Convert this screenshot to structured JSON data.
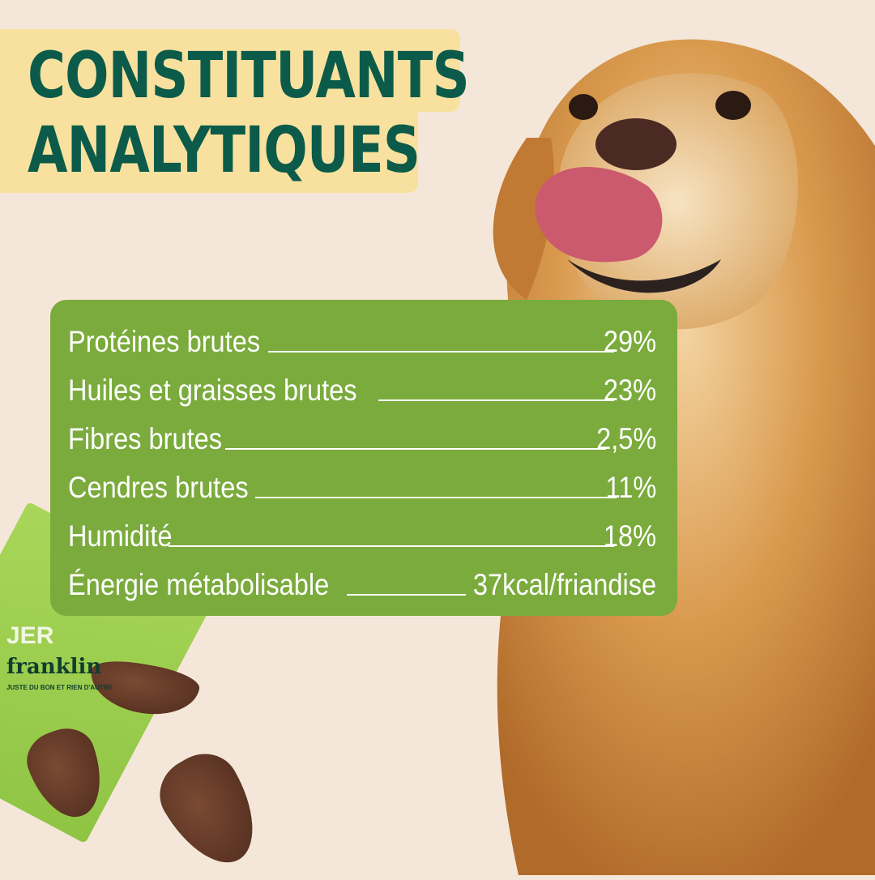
{
  "title": {
    "line1": "CONSTITUANTS",
    "line2": "ANALYTIQUES"
  },
  "constituents": [
    {
      "label": "Protéines brutes",
      "value": "29%"
    },
    {
      "label": "Huiles et graisses brutes",
      "value": "23%"
    },
    {
      "label": "Fibres brutes",
      "value": "2,5%"
    },
    {
      "label": "Cendres brutes",
      "value": "11%"
    },
    {
      "label": "Humidité",
      "value": "18%"
    },
    {
      "label": "Énergie métabolisable",
      "value": "37kcal/friandise"
    }
  ],
  "package": {
    "brand": "franklin",
    "tagline": "JUSTE DU BON ET RIEN D'AUTRE",
    "product_partial": "JER"
  },
  "colors": {
    "background": "#f4e7d9",
    "title_highlight": "#f8e19e",
    "title_text": "#0c5b4a",
    "panel": "#7aab3c"
  }
}
